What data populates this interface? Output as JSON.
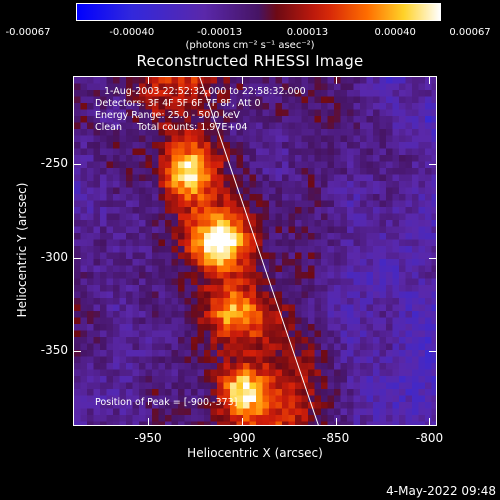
{
  "colorbar": {
    "tick_labels": [
      "-0.00067",
      "-0.00040",
      "-0.00013",
      "0.00013",
      "0.00040",
      "0.00067"
    ],
    "units": "(photons cm⁻² s⁻¹ asec⁻²)"
  },
  "title": "Reconstructed RHESSI Image",
  "annotations": {
    "time_range": "1-Aug-2003 22:52:32.000 to 22:58:32.000",
    "detectors": "Detectors: 3F 4F 5F 6F 7F 8F, Att 0",
    "energy_range": "Energy Range: 25.0 - 50.0 keV",
    "clean_counts": "Clean     Total counts: 1.97E+04",
    "peak_position": "Position of Peak = [-900,-373]"
  },
  "axes": {
    "x_label": "Heliocentric X (arcsec)",
    "y_label": "Heliocentric Y (arcsec)",
    "x_tick_labels": [
      "-950",
      "-900",
      "-850",
      "-800"
    ],
    "y_tick_labels": [
      "-250",
      "-300",
      "-350"
    ]
  },
  "footer": {
    "date": "4-May-2022 09:48"
  },
  "colors": {
    "limb_line": "#ffffff",
    "background": "#000000"
  },
  "chart_data": {
    "type": "heatmap",
    "title": "Reconstructed RHESSI Image",
    "xlabel": "Heliocentric X (arcsec)",
    "ylabel": "Heliocentric Y (arcsec)",
    "xlim": [
      -990,
      -796
    ],
    "ylim": [
      -390,
      -203
    ],
    "color_scale": {
      "min": -0.00067,
      "max": 0.00067,
      "colormap": "blue-white-red (RHESSI)"
    },
    "peak": [
      -900,
      -373
    ],
    "sources": [
      {
        "x": -912,
        "y": -292,
        "intensity": 0.00067
      },
      {
        "x": -930,
        "y": -255,
        "intensity": 0.0005
      },
      {
        "x": -900,
        "y": -373,
        "intensity": 0.00067
      },
      {
        "x": -905,
        "y": -330,
        "intensity": 0.00035
      }
    ]
  }
}
